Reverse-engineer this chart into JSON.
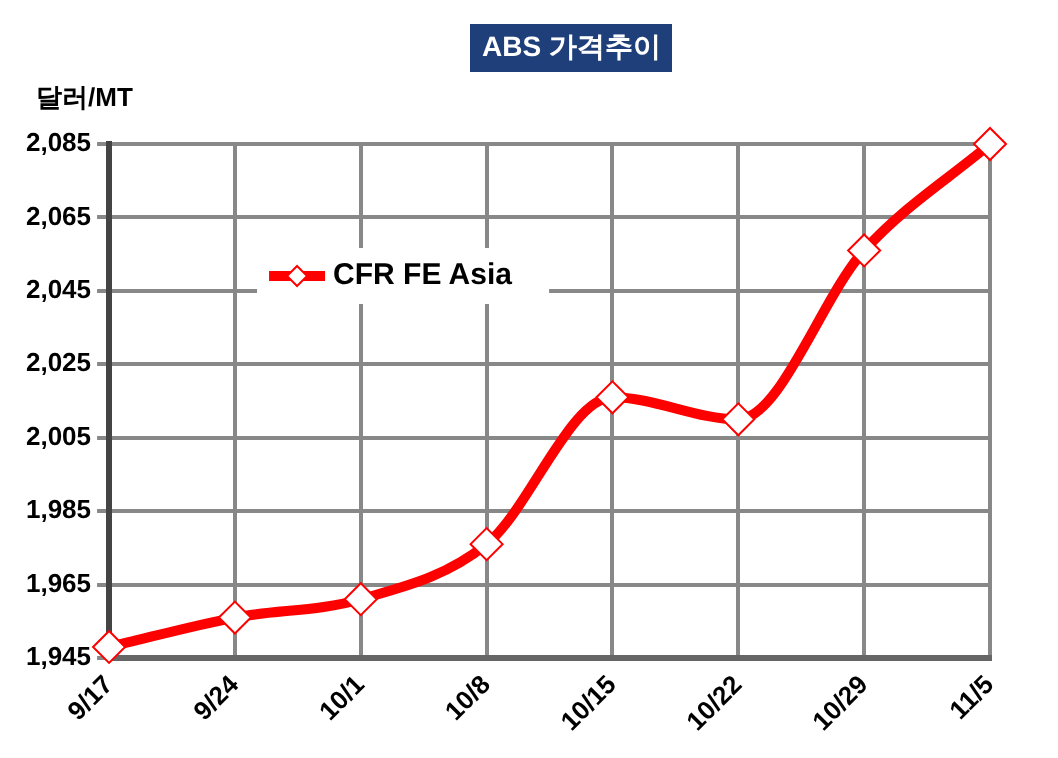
{
  "chart_data": {
    "type": "line",
    "title": "ABS 가격추이",
    "ylabel": "달러/MT",
    "categories": [
      "9/17",
      "9/24",
      "10/1",
      "10/8",
      "10/15",
      "10/22",
      "10/29",
      "11/5"
    ],
    "series": [
      {
        "name": "CFR FE Asia",
        "color": "#ff0000",
        "values": [
          1948,
          1956,
          1961,
          1976,
          2016,
          2010,
          2056,
          2085
        ]
      }
    ],
    "ylim": [
      1945,
      2085
    ],
    "yticks": [
      {
        "value": 1945,
        "label": "1,945"
      },
      {
        "value": 1965,
        "label": "1,965"
      },
      {
        "value": 1985,
        "label": "1,985"
      },
      {
        "value": 2005,
        "label": "2,005"
      },
      {
        "value": 2025,
        "label": "2,025"
      },
      {
        "value": 2045,
        "label": "2,045"
      },
      {
        "value": 2065,
        "label": "2,065"
      },
      {
        "value": 2085,
        "label": "2,085"
      }
    ],
    "grid": true,
    "legend": "top left",
    "marker": "diamond",
    "line_style": "solid"
  }
}
